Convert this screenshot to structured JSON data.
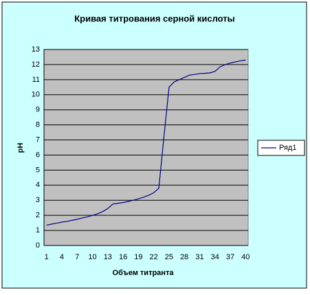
{
  "chart_data": {
    "type": "line",
    "title": "Кривая титрования серной кислоты",
    "x_label": "Объем титранта",
    "y_label": "pH",
    "categories": [
      1,
      null,
      null,
      4,
      null,
      null,
      7,
      null,
      null,
      10,
      null,
      null,
      13,
      null,
      null,
      16,
      null,
      null,
      19,
      null,
      null,
      22,
      null,
      null,
      25,
      null,
      null,
      28,
      null,
      null,
      31,
      null,
      null,
      34,
      null,
      null,
      37,
      null,
      null,
      40
    ],
    "series": [
      {
        "name": "Ряд1",
        "color": "#000080",
        "values": [
          1.35,
          1.42,
          1.48,
          1.55,
          1.6,
          1.67,
          1.74,
          1.82,
          1.9,
          2.0,
          2.1,
          2.25,
          2.45,
          2.75,
          2.8,
          2.85,
          2.92,
          3.0,
          3.1,
          3.2,
          3.33,
          3.5,
          3.8,
          7.2,
          10.5,
          10.85,
          11.0,
          11.15,
          11.3,
          11.35,
          11.4,
          11.42,
          11.45,
          11.55,
          11.85,
          12.0,
          12.1,
          12.18,
          12.25,
          12.3
        ]
      }
    ],
    "ylim": [
      0,
      13
    ],
    "yticks": [
      0,
      1,
      2,
      3,
      4,
      5,
      6,
      7,
      8,
      9,
      10,
      11,
      12,
      13
    ],
    "grid": true,
    "legend": "right"
  }
}
